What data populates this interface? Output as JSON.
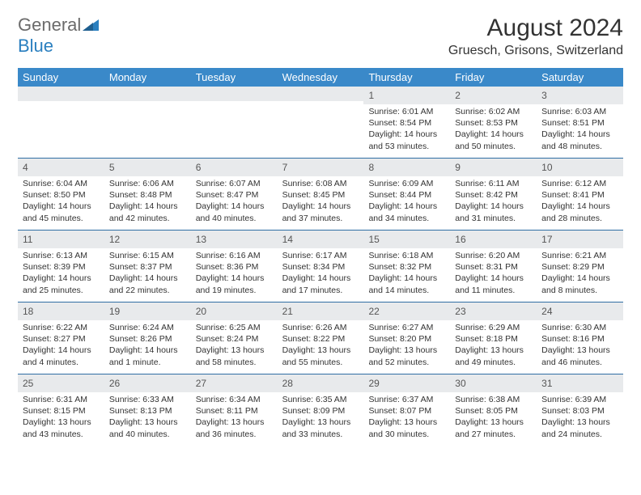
{
  "brand": {
    "name1": "General",
    "name2": "Blue"
  },
  "title": "August 2024",
  "location": "Gruesch, Grisons, Switzerland",
  "colors": {
    "header_bg": "#3a89c9",
    "header_text": "#ffffff",
    "daynum_bg": "#e8eaec",
    "border": "#2f6ea3",
    "brand_gray": "#6b6b6b",
    "brand_blue": "#2a7fbf"
  },
  "day_names": [
    "Sunday",
    "Monday",
    "Tuesday",
    "Wednesday",
    "Thursday",
    "Friday",
    "Saturday"
  ],
  "weeks": [
    [
      {
        "n": "",
        "sr": "",
        "ss": "",
        "dl": ""
      },
      {
        "n": "",
        "sr": "",
        "ss": "",
        "dl": ""
      },
      {
        "n": "",
        "sr": "",
        "ss": "",
        "dl": ""
      },
      {
        "n": "",
        "sr": "",
        "ss": "",
        "dl": ""
      },
      {
        "n": "1",
        "sr": "Sunrise: 6:01 AM",
        "ss": "Sunset: 8:54 PM",
        "dl": "Daylight: 14 hours and 53 minutes."
      },
      {
        "n": "2",
        "sr": "Sunrise: 6:02 AM",
        "ss": "Sunset: 8:53 PM",
        "dl": "Daylight: 14 hours and 50 minutes."
      },
      {
        "n": "3",
        "sr": "Sunrise: 6:03 AM",
        "ss": "Sunset: 8:51 PM",
        "dl": "Daylight: 14 hours and 48 minutes."
      }
    ],
    [
      {
        "n": "4",
        "sr": "Sunrise: 6:04 AM",
        "ss": "Sunset: 8:50 PM",
        "dl": "Daylight: 14 hours and 45 minutes."
      },
      {
        "n": "5",
        "sr": "Sunrise: 6:06 AM",
        "ss": "Sunset: 8:48 PM",
        "dl": "Daylight: 14 hours and 42 minutes."
      },
      {
        "n": "6",
        "sr": "Sunrise: 6:07 AM",
        "ss": "Sunset: 8:47 PM",
        "dl": "Daylight: 14 hours and 40 minutes."
      },
      {
        "n": "7",
        "sr": "Sunrise: 6:08 AM",
        "ss": "Sunset: 8:45 PM",
        "dl": "Daylight: 14 hours and 37 minutes."
      },
      {
        "n": "8",
        "sr": "Sunrise: 6:09 AM",
        "ss": "Sunset: 8:44 PM",
        "dl": "Daylight: 14 hours and 34 minutes."
      },
      {
        "n": "9",
        "sr": "Sunrise: 6:11 AM",
        "ss": "Sunset: 8:42 PM",
        "dl": "Daylight: 14 hours and 31 minutes."
      },
      {
        "n": "10",
        "sr": "Sunrise: 6:12 AM",
        "ss": "Sunset: 8:41 PM",
        "dl": "Daylight: 14 hours and 28 minutes."
      }
    ],
    [
      {
        "n": "11",
        "sr": "Sunrise: 6:13 AM",
        "ss": "Sunset: 8:39 PM",
        "dl": "Daylight: 14 hours and 25 minutes."
      },
      {
        "n": "12",
        "sr": "Sunrise: 6:15 AM",
        "ss": "Sunset: 8:37 PM",
        "dl": "Daylight: 14 hours and 22 minutes."
      },
      {
        "n": "13",
        "sr": "Sunrise: 6:16 AM",
        "ss": "Sunset: 8:36 PM",
        "dl": "Daylight: 14 hours and 19 minutes."
      },
      {
        "n": "14",
        "sr": "Sunrise: 6:17 AM",
        "ss": "Sunset: 8:34 PM",
        "dl": "Daylight: 14 hours and 17 minutes."
      },
      {
        "n": "15",
        "sr": "Sunrise: 6:18 AM",
        "ss": "Sunset: 8:32 PM",
        "dl": "Daylight: 14 hours and 14 minutes."
      },
      {
        "n": "16",
        "sr": "Sunrise: 6:20 AM",
        "ss": "Sunset: 8:31 PM",
        "dl": "Daylight: 14 hours and 11 minutes."
      },
      {
        "n": "17",
        "sr": "Sunrise: 6:21 AM",
        "ss": "Sunset: 8:29 PM",
        "dl": "Daylight: 14 hours and 8 minutes."
      }
    ],
    [
      {
        "n": "18",
        "sr": "Sunrise: 6:22 AM",
        "ss": "Sunset: 8:27 PM",
        "dl": "Daylight: 14 hours and 4 minutes."
      },
      {
        "n": "19",
        "sr": "Sunrise: 6:24 AM",
        "ss": "Sunset: 8:26 PM",
        "dl": "Daylight: 14 hours and 1 minute."
      },
      {
        "n": "20",
        "sr": "Sunrise: 6:25 AM",
        "ss": "Sunset: 8:24 PM",
        "dl": "Daylight: 13 hours and 58 minutes."
      },
      {
        "n": "21",
        "sr": "Sunrise: 6:26 AM",
        "ss": "Sunset: 8:22 PM",
        "dl": "Daylight: 13 hours and 55 minutes."
      },
      {
        "n": "22",
        "sr": "Sunrise: 6:27 AM",
        "ss": "Sunset: 8:20 PM",
        "dl": "Daylight: 13 hours and 52 minutes."
      },
      {
        "n": "23",
        "sr": "Sunrise: 6:29 AM",
        "ss": "Sunset: 8:18 PM",
        "dl": "Daylight: 13 hours and 49 minutes."
      },
      {
        "n": "24",
        "sr": "Sunrise: 6:30 AM",
        "ss": "Sunset: 8:16 PM",
        "dl": "Daylight: 13 hours and 46 minutes."
      }
    ],
    [
      {
        "n": "25",
        "sr": "Sunrise: 6:31 AM",
        "ss": "Sunset: 8:15 PM",
        "dl": "Daylight: 13 hours and 43 minutes."
      },
      {
        "n": "26",
        "sr": "Sunrise: 6:33 AM",
        "ss": "Sunset: 8:13 PM",
        "dl": "Daylight: 13 hours and 40 minutes."
      },
      {
        "n": "27",
        "sr": "Sunrise: 6:34 AM",
        "ss": "Sunset: 8:11 PM",
        "dl": "Daylight: 13 hours and 36 minutes."
      },
      {
        "n": "28",
        "sr": "Sunrise: 6:35 AM",
        "ss": "Sunset: 8:09 PM",
        "dl": "Daylight: 13 hours and 33 minutes."
      },
      {
        "n": "29",
        "sr": "Sunrise: 6:37 AM",
        "ss": "Sunset: 8:07 PM",
        "dl": "Daylight: 13 hours and 30 minutes."
      },
      {
        "n": "30",
        "sr": "Sunrise: 6:38 AM",
        "ss": "Sunset: 8:05 PM",
        "dl": "Daylight: 13 hours and 27 minutes."
      },
      {
        "n": "31",
        "sr": "Sunrise: 6:39 AM",
        "ss": "Sunset: 8:03 PM",
        "dl": "Daylight: 13 hours and 24 minutes."
      }
    ]
  ]
}
